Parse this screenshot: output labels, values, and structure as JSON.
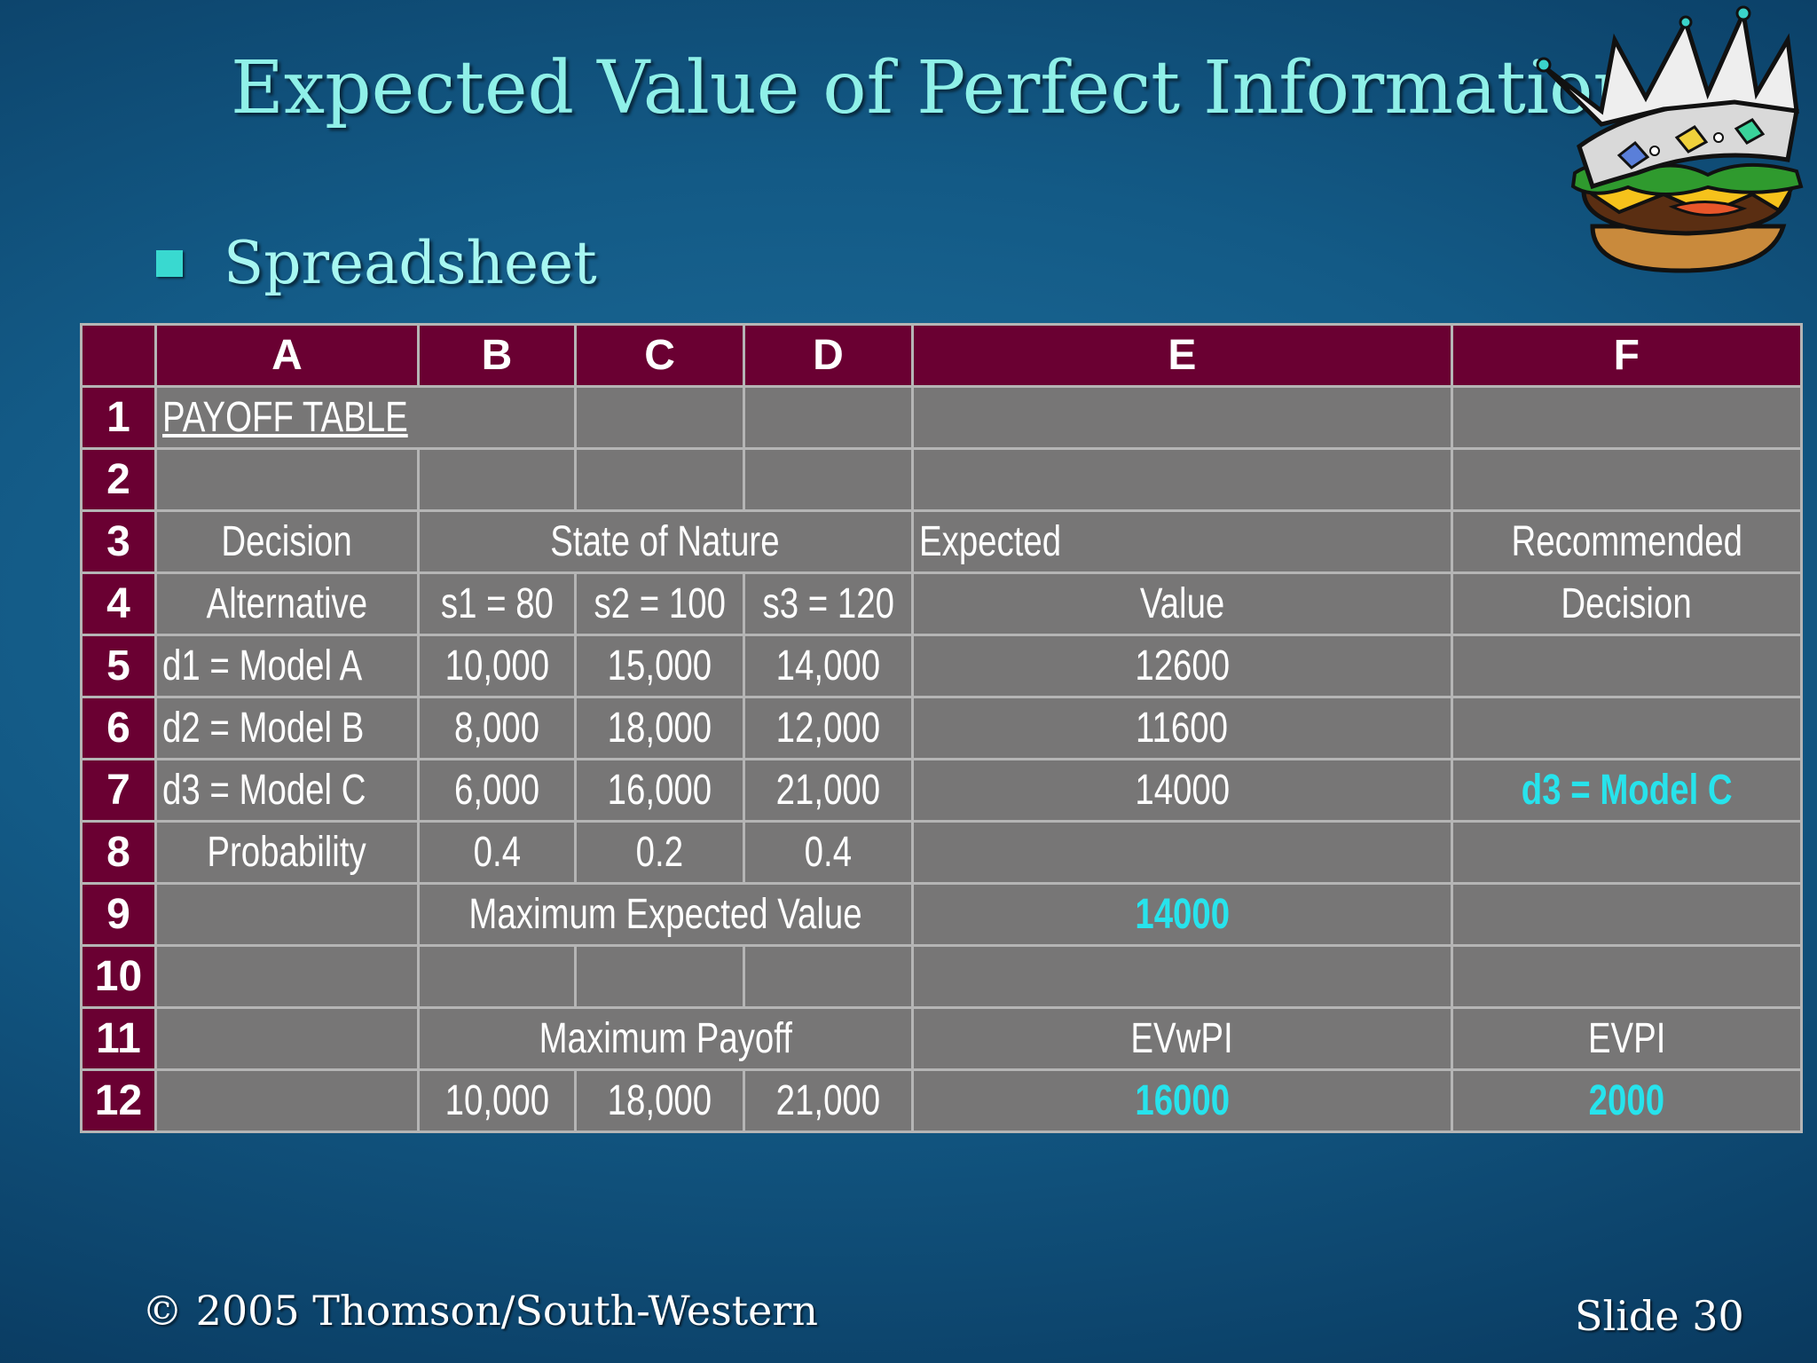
{
  "slide": {
    "title": "Expected Value of Perfect Information",
    "bullet": "Spreadsheet",
    "footer_left": "© 2005  Thomson/South-Western",
    "footer_right": "Slide 30",
    "mascot_icon": "crowned-burger-icon"
  },
  "sheet": {
    "col_headers": [
      "A",
      "B",
      "C",
      "D",
      "E",
      "F"
    ],
    "rows": {
      "r1": {
        "num": "1",
        "A": "PAYOFF TABLE"
      },
      "r2": {
        "num": "2"
      },
      "r3": {
        "num": "3",
        "A": "Decision",
        "BCD": "State of Nature",
        "E": "Expected",
        "F": "Recommended"
      },
      "r4": {
        "num": "4",
        "A": "Alternative",
        "B": "s1 = 80",
        "C": "s2 = 100",
        "D": "s3 = 120",
        "E": "Value",
        "F": "Decision"
      },
      "r5": {
        "num": "5",
        "A": "d1 = Model A",
        "B": "10,000",
        "C": "15,000",
        "D": "14,000",
        "E": "12600",
        "F": ""
      },
      "r6": {
        "num": "6",
        "A": "d2 = Model B",
        "B": "8,000",
        "C": "18,000",
        "D": "12,000",
        "E": "11600",
        "F": ""
      },
      "r7": {
        "num": "7",
        "A": "d3 = Model C",
        "B": "6,000",
        "C": "16,000",
        "D": "21,000",
        "E": "14000",
        "F": "d3 = Model C"
      },
      "r8": {
        "num": "8",
        "A": "Probability",
        "B": "0.4",
        "C": "0.2",
        "D": "0.4"
      },
      "r9": {
        "num": "9",
        "BCD": "Maximum Expected Value",
        "E": "14000"
      },
      "r10": {
        "num": "10"
      },
      "r11": {
        "num": "11",
        "BCD": "Maximum Payoff",
        "E": "EVwPI",
        "F": "EVPI"
      },
      "r12": {
        "num": "12",
        "B": "10,000",
        "C": "18,000",
        "D": "21,000",
        "E": "16000",
        "F": "2000"
      }
    }
  },
  "colors": {
    "header_bg": "#6a0032",
    "cell_bg": "#777676",
    "highlight": "#27e3ec",
    "title": "#8ff0e8"
  }
}
